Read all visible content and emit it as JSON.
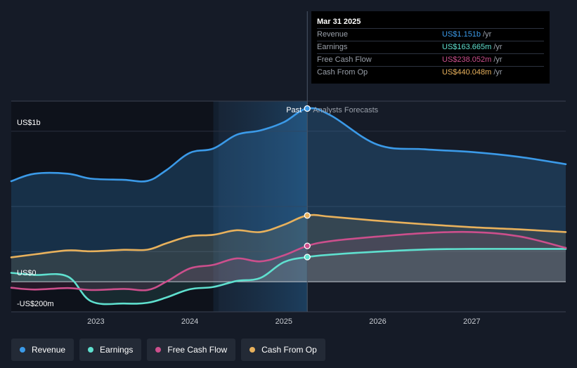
{
  "colors": {
    "revenue": "#3b9ae8",
    "earnings": "#5fe0cf",
    "free_cash_flow": "#cc4f8c",
    "cash_from_op": "#e8b15c"
  },
  "tooltip": {
    "date": "Mar 31 2025",
    "rows": [
      {
        "label": "Revenue",
        "value": "US$1.151b",
        "unit": "/yr",
        "color": "#3b9ae8"
      },
      {
        "label": "Earnings",
        "value": "US$163.665m",
        "unit": "/yr",
        "color": "#5fe0cf"
      },
      {
        "label": "Free Cash Flow",
        "value": "US$238.052m",
        "unit": "/yr",
        "color": "#cc4f8c"
      },
      {
        "label": "Cash From Op",
        "value": "US$440.048m",
        "unit": "/yr",
        "color": "#e8b15c"
      }
    ]
  },
  "legend": [
    {
      "label": "Revenue",
      "color": "#3b9ae8"
    },
    {
      "label": "Earnings",
      "color": "#5fe0cf"
    },
    {
      "label": "Free Cash Flow",
      "color": "#cc4f8c"
    },
    {
      "label": "Cash From Op",
      "color": "#e8b15c"
    }
  ],
  "chart_data": {
    "type": "line",
    "title": "",
    "xlabel": "",
    "ylabel": "",
    "ylim": [
      -200,
      1200
    ],
    "xlim": [
      2022.1,
      2028.0
    ],
    "y_tick_labels": [
      {
        "value": 1000,
        "label": "US$1b"
      },
      {
        "value": 0,
        "label": "US$0"
      },
      {
        "value": -200,
        "label": "-US$200m"
      }
    ],
    "x_ticks": [
      {
        "value": 2023,
        "label": "2023"
      },
      {
        "value": 2024,
        "label": "2024"
      },
      {
        "value": 2025,
        "label": "2025"
      },
      {
        "value": 2026,
        "label": "2026"
      },
      {
        "value": 2027,
        "label": "2027"
      }
    ],
    "past_label": "Past",
    "forecast_label": "Analysts Forecasts",
    "divider_x": 2025.25,
    "highlight_start_x": 2024.25,
    "marker_x": 2025.25,
    "series": [
      {
        "name": "Revenue",
        "key": "revenue",
        "x": [
          2022.1,
          2022.35,
          2022.7,
          2022.95,
          2023.3,
          2023.55,
          2023.75,
          2024.0,
          2024.25,
          2024.5,
          2024.75,
          2025.0,
          2025.25,
          2025.5,
          2026.0,
          2026.5,
          2027.0,
          2027.5,
          2028.0
        ],
        "y": [
          668,
          718,
          718,
          685,
          677,
          670,
          741,
          856,
          885,
          977,
          1005,
          1060,
          1151,
          1105,
          910,
          880,
          862,
          830,
          781
        ]
      },
      {
        "name": "Earnings",
        "key": "earnings",
        "x": [
          2022.1,
          2022.35,
          2022.7,
          2022.95,
          2023.3,
          2023.55,
          2023.75,
          2024.0,
          2024.25,
          2024.5,
          2024.75,
          2025.0,
          2025.25,
          2025.5,
          2026.0,
          2026.5,
          2027.0,
          2027.5,
          2028.0
        ],
        "y": [
          59,
          45,
          35,
          -130,
          -145,
          -140,
          -105,
          -50,
          -35,
          5,
          25,
          130,
          164,
          180,
          200,
          214,
          218,
          218,
          218
        ]
      },
      {
        "name": "Free Cash Flow",
        "key": "free_cash_flow",
        "x": [
          2022.1,
          2022.35,
          2022.7,
          2022.95,
          2023.3,
          2023.55,
          2023.75,
          2024.0,
          2024.25,
          2024.5,
          2024.75,
          2025.0,
          2025.25,
          2025.5,
          2026.0,
          2026.5,
          2027.0,
          2027.5,
          2028.0
        ],
        "y": [
          -40,
          -52,
          -42,
          -55,
          -48,
          -55,
          0,
          88,
          112,
          155,
          135,
          175,
          238,
          270,
          300,
          323,
          330,
          302,
          225
        ]
      },
      {
        "name": "Cash From Op",
        "key": "cash_from_op",
        "x": [
          2022.1,
          2022.35,
          2022.7,
          2022.95,
          2023.3,
          2023.55,
          2023.75,
          2024.0,
          2024.25,
          2024.5,
          2024.75,
          2025.0,
          2025.25,
          2025.5,
          2026.0,
          2026.5,
          2027.0,
          2027.5,
          2028.0
        ],
        "y": [
          162,
          182,
          208,
          202,
          212,
          213,
          255,
          302,
          312,
          342,
          330,
          378,
          440,
          432,
          405,
          382,
          362,
          348,
          330
        ]
      }
    ]
  }
}
